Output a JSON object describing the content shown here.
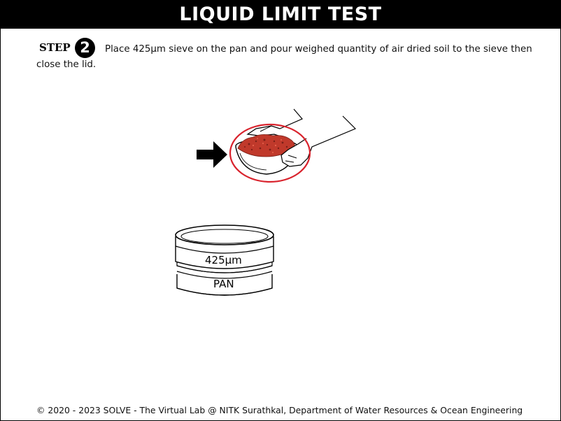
{
  "header": {
    "title": "LIQUID LIMIT TEST"
  },
  "step": {
    "label": "STEP",
    "number": "2",
    "text_line1": "Place 425µm sieve on the pan and pour weighed quantity of air dried soil to the sieve then",
    "text_line2": "close the lid."
  },
  "illustration": {
    "sieve_label": "425µm",
    "pan_label": "PAN",
    "pointer_icon": "arrow-right-icon",
    "highlight_color": "#d9232d",
    "soil_color": "#c0392b"
  },
  "footer": {
    "copyright": "© 2020 - 2023 SOLVE - The Virtual Lab @ NITK Surathkal, Department of Water Resources & Ocean Engineering"
  }
}
